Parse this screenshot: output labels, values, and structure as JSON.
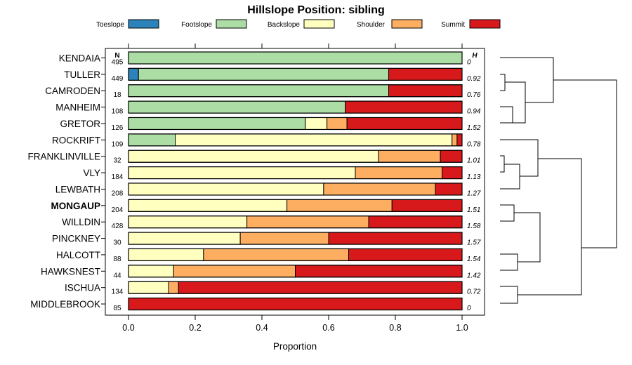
{
  "chart_data": {
    "type": "bar",
    "orientation": "horizontal",
    "stacked": true,
    "title": "Hillslope Position: sibling",
    "xlabel": "Proportion",
    "xlim": [
      0,
      1
    ],
    "xticks": [
      "0.0",
      "0.2",
      "0.4",
      "0.6",
      "0.8",
      "1.0"
    ],
    "n_header": "N",
    "h_header": "H",
    "highlight": "MONGAUP",
    "legend": [
      {
        "name": "Toeslope",
        "color": "#2B83BA"
      },
      {
        "name": "Footslope",
        "color": "#ABDDA4"
      },
      {
        "name": "Backslope",
        "color": "#FFFFBF"
      },
      {
        "name": "Shoulder",
        "color": "#FDAE61"
      },
      {
        "name": "Summit",
        "color": "#D7191C"
      }
    ],
    "categories": [
      "KENDAIA",
      "TULLER",
      "CAMRODEN",
      "MANHEIM",
      "GRETOR",
      "ROCKRIFT",
      "FRANKLINVILLE",
      "VLY",
      "LEWBATH",
      "MONGAUP",
      "WILLDIN",
      "PINCKNEY",
      "HALCOTT",
      "HAWKSNEST",
      "ISCHUA",
      "MIDDLEBROOK"
    ],
    "n": [
      "495",
      "449",
      "18",
      "108",
      "126",
      "109",
      "32",
      "184",
      "208",
      "204",
      "428",
      "30",
      "88",
      "44",
      "134",
      "85"
    ],
    "h": [
      "0",
      "0.92",
      "0.76",
      "0.94",
      "1.52",
      "0.78",
      "1.01",
      "1.13",
      "1.27",
      "1.51",
      "1.58",
      "1.57",
      "1.54",
      "1.42",
      "0.72",
      "0"
    ],
    "series": [
      {
        "name": "Toeslope",
        "values": [
          0,
          0.03,
          0,
          0,
          0,
          0,
          0,
          0,
          0,
          0,
          0,
          0,
          0,
          0,
          0,
          0
        ]
      },
      {
        "name": "Footslope",
        "values": [
          1.0,
          0.75,
          0.78,
          0.65,
          0.53,
          0.14,
          0,
          0,
          0,
          0,
          0,
          0,
          0,
          0,
          0,
          0
        ]
      },
      {
        "name": "Backslope",
        "values": [
          0,
          0,
          0,
          0,
          0.065,
          0.83,
          0.75,
          0.68,
          0.585,
          0.475,
          0.355,
          0.335,
          0.225,
          0.135,
          0.12,
          0
        ]
      },
      {
        "name": "Shoulder",
        "values": [
          0,
          0,
          0,
          0,
          0.06,
          0.015,
          0.185,
          0.26,
          0.335,
          0.315,
          0.365,
          0.265,
          0.435,
          0.365,
          0.03,
          0
        ]
      },
      {
        "name": "Summit",
        "values": [
          0,
          0.22,
          0.22,
          0.35,
          0.345,
          0.015,
          0.065,
          0.06,
          0.08,
          0.21,
          0.28,
          0.4,
          0.34,
          0.5,
          0.85,
          1.0
        ]
      }
    ]
  }
}
